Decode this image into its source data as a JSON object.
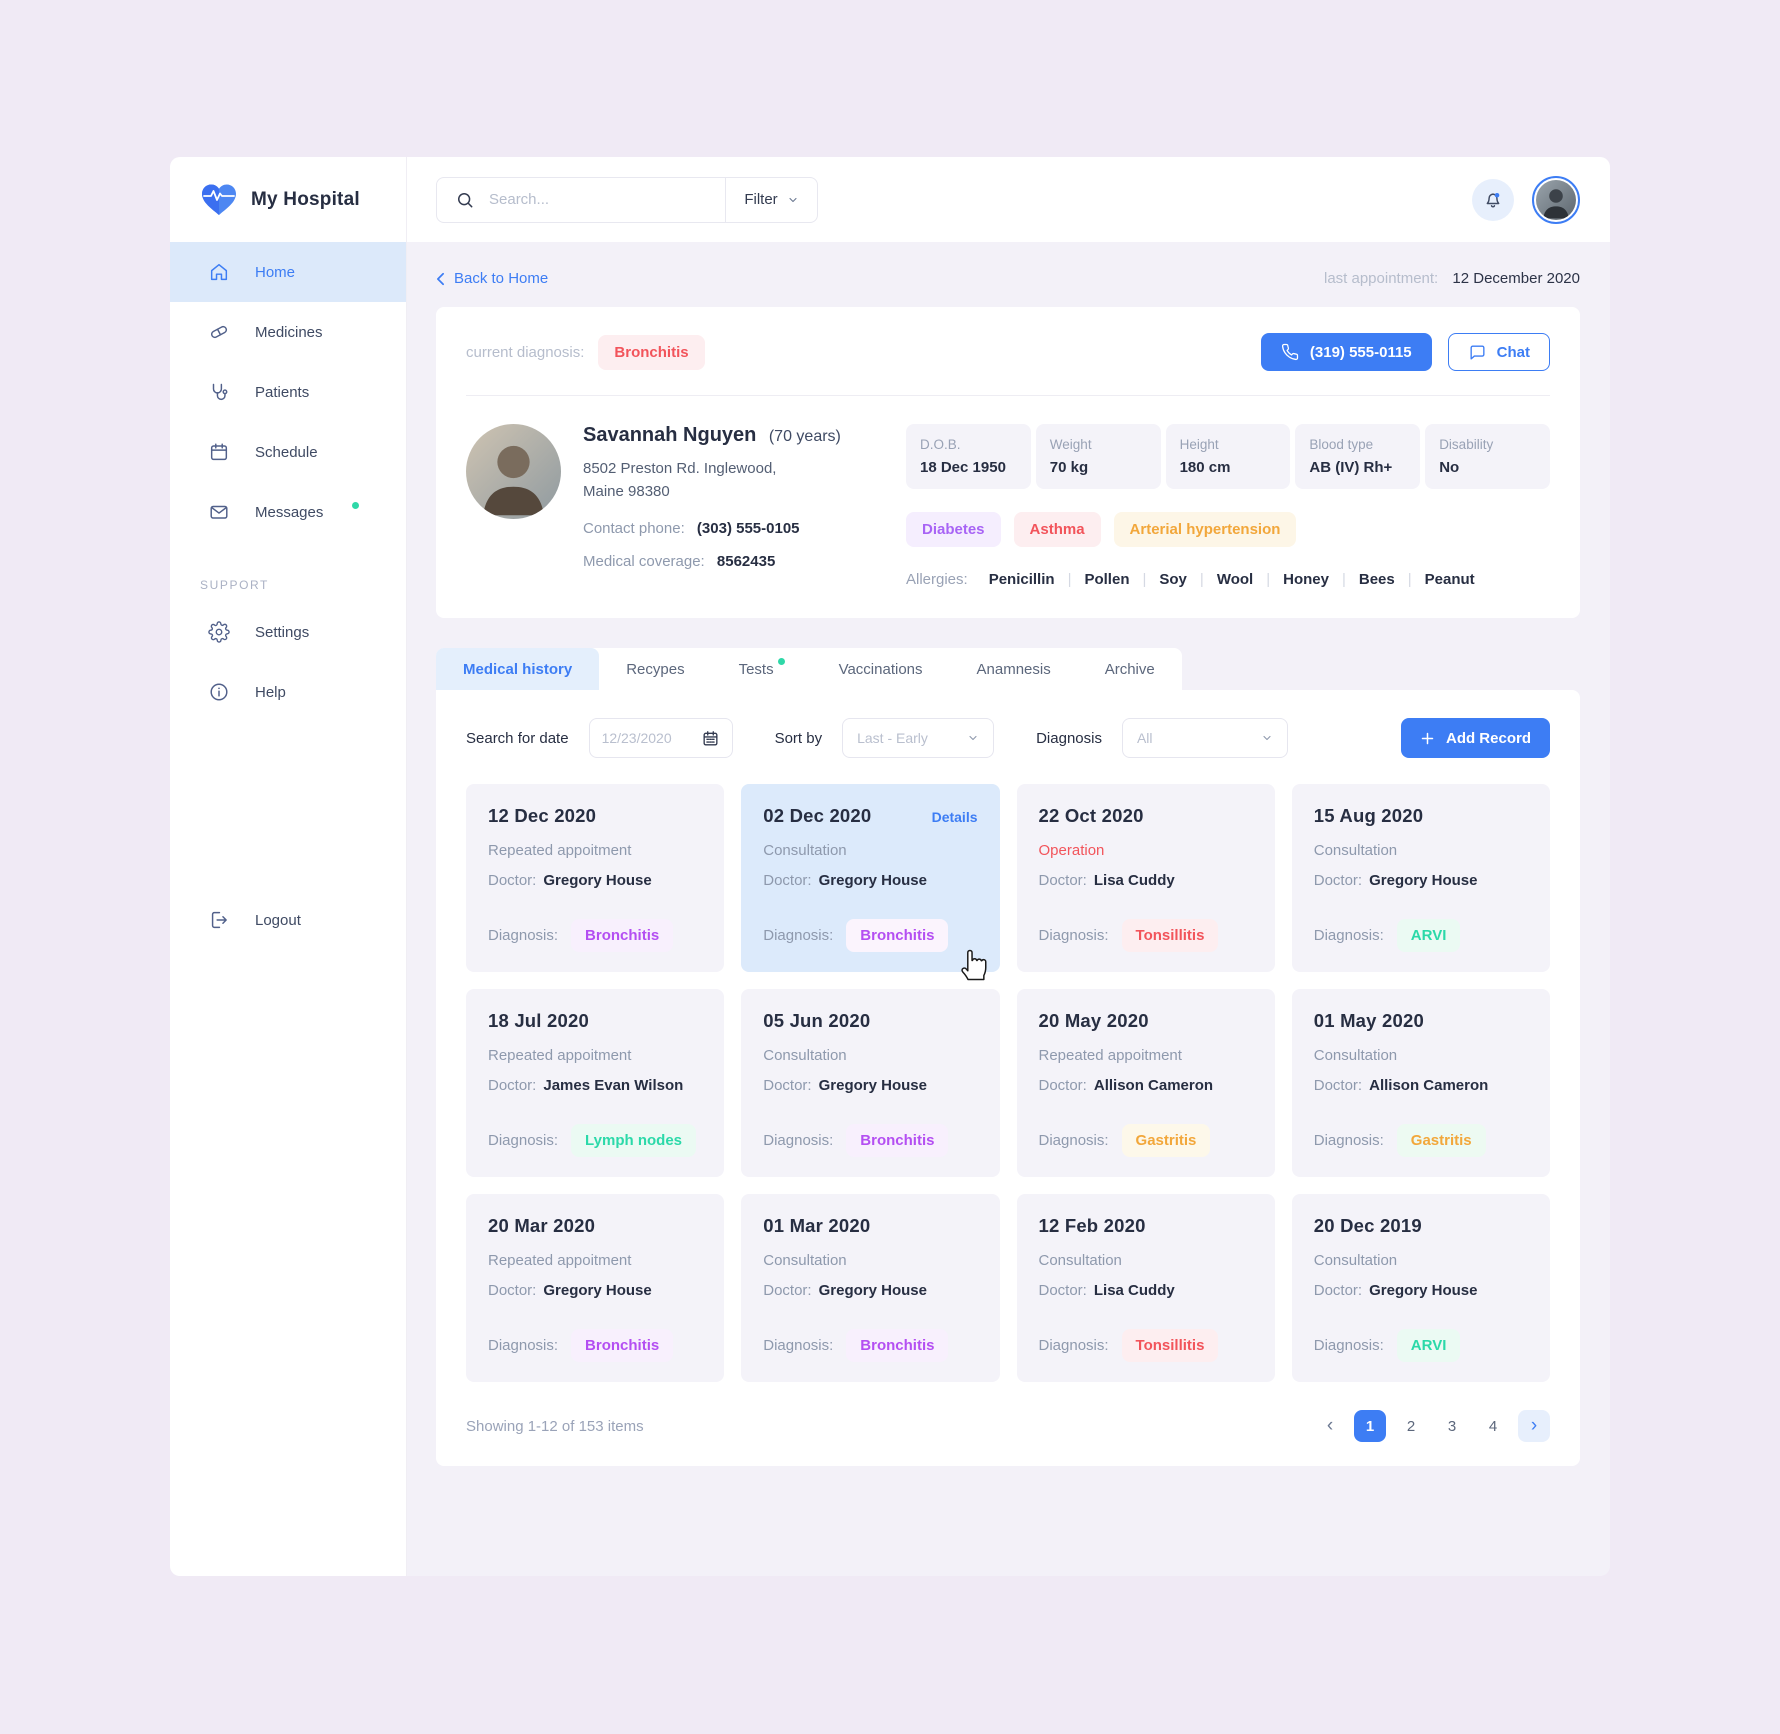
{
  "app": {
    "title": "My Hospital"
  },
  "topbar": {
    "search_placeholder": "Search...",
    "filter_label": "Filter"
  },
  "sidebar": {
    "items": [
      {
        "id": "home",
        "icon": "home-icon",
        "label": "Home",
        "active": true
      },
      {
        "id": "medicines",
        "icon": "pill-icon",
        "label": "Medicines"
      },
      {
        "id": "patients",
        "icon": "stethoscope-icon",
        "label": "Patients"
      },
      {
        "id": "schedule",
        "icon": "calendar-icon",
        "label": "Schedule"
      },
      {
        "id": "messages",
        "icon": "envelope-icon",
        "label": "Messages",
        "dot": true
      }
    ],
    "support_label": "SUPPORT",
    "support_items": [
      {
        "id": "settings",
        "icon": "gear-icon",
        "label": "Settings"
      },
      {
        "id": "help",
        "icon": "info-icon",
        "label": "Help"
      }
    ],
    "logout_label": "Logout"
  },
  "breadcrumb": {
    "back_label": "Back to Home",
    "last_appointment_label": "last appointment:",
    "last_appointment_value": "12 December 2020"
  },
  "patient": {
    "current_diagnosis_label": "current diagnosis:",
    "current_diagnosis": "Bronchitis",
    "phone_button": "(319) 555-0115",
    "chat_button": "Chat",
    "name": "Savannah Nguyen",
    "age": "(70 years)",
    "address_line1": "8502 Preston Rd. Inglewood,",
    "address_line2": "Maine 98380",
    "contact_phone_label": "Contact phone:",
    "contact_phone": "(303) 555-0105",
    "coverage_label": "Medical coverage:",
    "coverage": "8562435",
    "stats": [
      {
        "label": "D.O.B.",
        "value": "18 Dec 1950"
      },
      {
        "label": "Weight",
        "value": "70 kg"
      },
      {
        "label": "Height",
        "value": "180 cm"
      },
      {
        "label": "Blood type",
        "value": "AB (IV) Rh+"
      },
      {
        "label": "Disability",
        "value": "No"
      }
    ],
    "conditions": [
      {
        "label": "Diabetes",
        "color": "#a864f5",
        "bg": "#f5eefe"
      },
      {
        "label": "Asthma",
        "color": "#f2545b",
        "bg": "#fdeef0"
      },
      {
        "label": "Arterial hypertension",
        "color": "#f2a73b",
        "bg": "#fdf6e7"
      }
    ],
    "allergies_label": "Allergies:",
    "allergies": [
      "Penicillin",
      "Pollen",
      "Soy",
      "Wool",
      "Honey",
      "Bees",
      "Peanut"
    ]
  },
  "tabs": [
    {
      "label": "Medical history",
      "active": true
    },
    {
      "label": "Recypes"
    },
    {
      "label": "Tests",
      "dot": true
    },
    {
      "label": "Vaccinations"
    },
    {
      "label": "Anamnesis"
    },
    {
      "label": "Archive"
    }
  ],
  "filters": {
    "date_label": "Search for date",
    "date_placeholder": "12/23/2020",
    "sort_label": "Sort by",
    "sort_value": "Last - Early",
    "diagnosis_label": "Diagnosis",
    "diagnosis_value": "All",
    "add_record_label": "Add Record"
  },
  "record_labels": {
    "doctor_label": "Doctor:",
    "diagnosis_label": "Diagnosis:"
  },
  "records": [
    {
      "date": "12 Dec 2020",
      "type": "Repeated appoitment",
      "doctor": "Gregory House",
      "diagnosis": "Bronchitis",
      "badge_color": "#b44ff2",
      "badge_bg": "#f8f0fd"
    },
    {
      "date": "02 Dec 2020",
      "details": "Details",
      "type": "Consultation",
      "doctor": "Gregory House",
      "diagnosis": "Bronchitis",
      "badge_color": "#b44ff2",
      "badge_bg": "#fbf4fd",
      "highlighted": true
    },
    {
      "date": "22 Oct 2020",
      "type": "Operation",
      "type_color": "#f2545b",
      "doctor": "Lisa Cuddy",
      "diagnosis": "Tonsillitis",
      "badge_color": "#f2545b",
      "badge_bg": "#fdeef0"
    },
    {
      "date": "15 Aug 2020",
      "type": "Consultation",
      "doctor": "Gregory House",
      "diagnosis": "ARVI",
      "badge_color": "#2bd9a9",
      "badge_bg": "#ebfaf3"
    },
    {
      "date": "18 Jul 2020",
      "type": "Repeated appoitment",
      "doctor": "James Evan Wilson",
      "diagnosis": "Lymph nodes",
      "badge_color": "#2bd9a9",
      "badge_bg": "#ebfaf3"
    },
    {
      "date": "05 Jun 2020",
      "type": "Consultation",
      "doctor": "Gregory House",
      "diagnosis": "Bronchitis",
      "badge_color": "#b44ff2",
      "badge_bg": "#f8f0fd"
    },
    {
      "date": "20 May 2020",
      "type": "Repeated appoitment",
      "doctor": "Allison Cameron",
      "diagnosis": "Gastritis",
      "badge_color": "#f2a73b",
      "badge_bg": "#fdf8ea"
    },
    {
      "date": "01 May 2020",
      "type": "Consultation",
      "doctor": "Allison Cameron",
      "diagnosis": "Gastritis",
      "badge_color": "#f2a73b",
      "badge_bg": "#edfaf2"
    },
    {
      "date": "20 Mar 2020",
      "type": "Repeated appoitment",
      "doctor": "Gregory House",
      "diagnosis": "Bronchitis",
      "badge_color": "#b44ff2",
      "badge_bg": "#f8f0fd"
    },
    {
      "date": "01 Mar 2020",
      "type": "Consultation",
      "doctor": "Gregory House",
      "diagnosis": "Bronchitis",
      "badge_color": "#b44ff2",
      "badge_bg": "#f8f0fd"
    },
    {
      "date": "12 Feb 2020",
      "type": "Consultation",
      "doctor": "Lisa Cuddy",
      "diagnosis": "Tonsillitis",
      "badge_color": "#f2545b",
      "badge_bg": "#fdeef0"
    },
    {
      "date": "20 Dec 2019",
      "type": "Consultation",
      "doctor": "Gregory House",
      "diagnosis": "ARVI",
      "badge_color": "#2bd9a9",
      "badge_bg": "#ebfaf3"
    }
  ],
  "pagination": {
    "showing": "Showing 1-12 of 153 items",
    "pages": [
      "1",
      "2",
      "3",
      "4"
    ],
    "active_index": 0
  },
  "colors": {
    "accent": "#3d7df4",
    "red": "#f2545b",
    "purple": "#b44ff2",
    "green": "#2bd9a9",
    "orange": "#f2a73b"
  }
}
